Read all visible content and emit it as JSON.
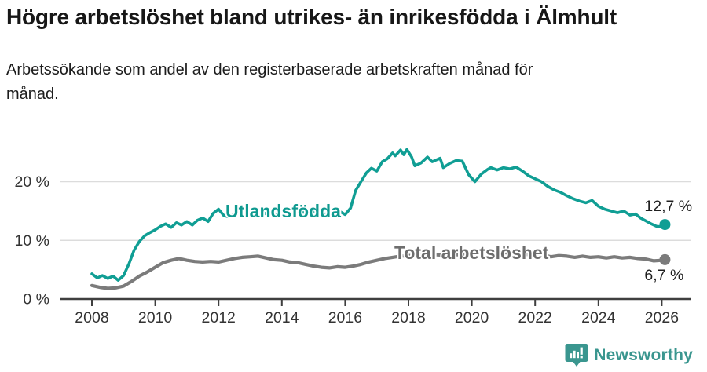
{
  "header": {
    "title": "Högre arbetslöshet bland utrikes- än inrikesfödda i Älmhult",
    "subtitle": "Arbetssökande som andel av den registerbaserade arbetskraften månad för månad."
  },
  "chart_data": {
    "type": "line",
    "title": "Högre arbetslöshet bland utrikes- än inrikesfödda i Älmhult",
    "subtitle": "Arbetssökande som andel av den registerbaserade arbetskraften månad för månad.",
    "unit": "%",
    "grid": "horizontal-only",
    "legend_position": "inline-labels",
    "x_axis": {
      "tick_years": [
        2008,
        2010,
        2012,
        2014,
        2016,
        2018,
        2020,
        2022,
        2024,
        2026
      ],
      "range": [
        2007.9,
        2026.9
      ]
    },
    "y_axis": {
      "ticks": [
        {
          "value": 0,
          "label": "0 %"
        },
        {
          "value": 10,
          "label": "10 %"
        },
        {
          "value": 20,
          "label": "20 %"
        }
      ],
      "range": [
        0,
        26.5
      ]
    },
    "colors": {
      "accent_teal": "#109e94",
      "gray_line": "#7b7b7b",
      "gray_label": "#6e6e6e",
      "grid": "#dcdcdc",
      "axis": "#3f3f3f",
      "axis_text": "#333333",
      "value_text": "#1f1f1f"
    },
    "series": [
      {
        "name": "Utlandsfödda",
        "color": "#109e94",
        "label_color": "#0f9a90",
        "end_label": "12,7 %",
        "end_value": 12.7,
        "points": [
          [
            2008.0,
            4.3
          ],
          [
            2008.17,
            3.6
          ],
          [
            2008.33,
            4.0
          ],
          [
            2008.5,
            3.5
          ],
          [
            2008.67,
            3.9
          ],
          [
            2008.83,
            3.2
          ],
          [
            2009.0,
            4.0
          ],
          [
            2009.17,
            6.0
          ],
          [
            2009.33,
            8.3
          ],
          [
            2009.5,
            9.8
          ],
          [
            2009.67,
            10.8
          ],
          [
            2009.83,
            11.3
          ],
          [
            2010.0,
            11.8
          ],
          [
            2010.17,
            12.4
          ],
          [
            2010.33,
            12.8
          ],
          [
            2010.5,
            12.2
          ],
          [
            2010.67,
            13.0
          ],
          [
            2010.83,
            12.6
          ],
          [
            2011.0,
            13.2
          ],
          [
            2011.17,
            12.6
          ],
          [
            2011.33,
            13.4
          ],
          [
            2011.5,
            13.8
          ],
          [
            2011.67,
            13.2
          ],
          [
            2011.83,
            14.6
          ],
          [
            2012.0,
            15.3
          ],
          [
            2012.17,
            14.2
          ],
          [
            2012.33,
            14.0
          ],
          [
            2012.5,
            14.5
          ],
          [
            2012.67,
            15.0
          ],
          [
            2012.83,
            14.4
          ],
          [
            2013.0,
            15.2
          ],
          [
            2013.17,
            15.6
          ],
          [
            2013.33,
            15.0
          ],
          [
            2013.5,
            14.5
          ],
          [
            2013.67,
            14.8
          ],
          [
            2013.83,
            14.4
          ],
          [
            2014.0,
            14.6
          ],
          [
            2014.25,
            14.2
          ],
          [
            2014.5,
            15.0
          ],
          [
            2014.75,
            14.7
          ],
          [
            2015.0,
            15.0
          ],
          [
            2015.25,
            14.4
          ],
          [
            2015.5,
            14.6
          ],
          [
            2015.75,
            15.2
          ],
          [
            2016.0,
            14.4
          ],
          [
            2016.17,
            15.5
          ],
          [
            2016.33,
            18.5
          ],
          [
            2016.5,
            20.0
          ],
          [
            2016.67,
            21.5
          ],
          [
            2016.83,
            22.3
          ],
          [
            2017.0,
            21.8
          ],
          [
            2017.17,
            23.4
          ],
          [
            2017.33,
            23.9
          ],
          [
            2017.5,
            24.9
          ],
          [
            2017.58,
            24.4
          ],
          [
            2017.75,
            25.4
          ],
          [
            2017.85,
            24.6
          ],
          [
            2017.95,
            25.5
          ],
          [
            2018.1,
            24.2
          ],
          [
            2018.2,
            22.7
          ],
          [
            2018.4,
            23.2
          ],
          [
            2018.6,
            24.2
          ],
          [
            2018.75,
            23.4
          ],
          [
            2019.0,
            24.0
          ],
          [
            2019.1,
            22.4
          ],
          [
            2019.3,
            23.1
          ],
          [
            2019.5,
            23.6
          ],
          [
            2019.7,
            23.5
          ],
          [
            2019.9,
            21.2
          ],
          [
            2020.1,
            20.0
          ],
          [
            2020.3,
            21.3
          ],
          [
            2020.5,
            22.1
          ],
          [
            2020.6,
            22.4
          ],
          [
            2020.8,
            22.0
          ],
          [
            2021.0,
            22.4
          ],
          [
            2021.2,
            22.2
          ],
          [
            2021.4,
            22.5
          ],
          [
            2021.6,
            21.8
          ],
          [
            2021.8,
            21.0
          ],
          [
            2022.0,
            20.5
          ],
          [
            2022.2,
            20.0
          ],
          [
            2022.4,
            19.2
          ],
          [
            2022.6,
            18.6
          ],
          [
            2022.8,
            18.2
          ],
          [
            2023.0,
            17.6
          ],
          [
            2023.2,
            17.1
          ],
          [
            2023.4,
            16.7
          ],
          [
            2023.6,
            16.4
          ],
          [
            2023.8,
            16.8
          ],
          [
            2024.0,
            15.8
          ],
          [
            2024.2,
            15.3
          ],
          [
            2024.4,
            15.0
          ],
          [
            2024.6,
            14.7
          ],
          [
            2024.8,
            15.0
          ],
          [
            2025.0,
            14.3
          ],
          [
            2025.17,
            14.5
          ],
          [
            2025.33,
            13.8
          ],
          [
            2025.5,
            13.3
          ],
          [
            2025.67,
            12.8
          ],
          [
            2025.83,
            12.4
          ],
          [
            2026.0,
            12.3
          ],
          [
            2026.1,
            12.7
          ]
        ]
      },
      {
        "name": "Total arbetslöshet",
        "color": "#7b7b7b",
        "label_color": "#6e6e6e",
        "end_label": "6,7 %",
        "end_value": 6.7,
        "points": [
          [
            2008.0,
            2.3
          ],
          [
            2008.25,
            2.0
          ],
          [
            2008.5,
            1.8
          ],
          [
            2008.75,
            1.9
          ],
          [
            2009.0,
            2.2
          ],
          [
            2009.25,
            3.0
          ],
          [
            2009.5,
            3.9
          ],
          [
            2009.75,
            4.6
          ],
          [
            2010.0,
            5.4
          ],
          [
            2010.25,
            6.2
          ],
          [
            2010.5,
            6.6
          ],
          [
            2010.75,
            6.9
          ],
          [
            2011.0,
            6.6
          ],
          [
            2011.25,
            6.4
          ],
          [
            2011.5,
            6.3
          ],
          [
            2011.75,
            6.4
          ],
          [
            2012.0,
            6.3
          ],
          [
            2012.25,
            6.6
          ],
          [
            2012.5,
            6.9
          ],
          [
            2012.75,
            7.1
          ],
          [
            2013.0,
            7.2
          ],
          [
            2013.25,
            7.3
          ],
          [
            2013.5,
            7.0
          ],
          [
            2013.75,
            6.7
          ],
          [
            2014.0,
            6.6
          ],
          [
            2014.25,
            6.3
          ],
          [
            2014.5,
            6.2
          ],
          [
            2014.75,
            5.9
          ],
          [
            2015.0,
            5.6
          ],
          [
            2015.25,
            5.4
          ],
          [
            2015.5,
            5.3
          ],
          [
            2015.75,
            5.5
          ],
          [
            2016.0,
            5.4
          ],
          [
            2016.25,
            5.6
          ],
          [
            2016.5,
            5.9
          ],
          [
            2016.75,
            6.3
          ],
          [
            2017.0,
            6.6
          ],
          [
            2017.25,
            6.9
          ],
          [
            2017.5,
            7.1
          ],
          [
            2017.75,
            7.3
          ],
          [
            2018.0,
            7.4
          ],
          [
            2018.33,
            7.5
          ],
          [
            2018.67,
            7.6
          ],
          [
            2019.0,
            7.5
          ],
          [
            2019.33,
            7.6
          ],
          [
            2019.67,
            7.5
          ],
          [
            2020.0,
            7.7
          ],
          [
            2020.33,
            8.1
          ],
          [
            2020.67,
            8.0
          ],
          [
            2021.0,
            7.9
          ],
          [
            2021.33,
            7.8
          ],
          [
            2021.67,
            7.6
          ],
          [
            2022.0,
            7.5
          ],
          [
            2022.33,
            7.4
          ],
          [
            2022.5,
            7.2
          ],
          [
            2022.75,
            7.4
          ],
          [
            2023.0,
            7.3
          ],
          [
            2023.25,
            7.1
          ],
          [
            2023.5,
            7.3
          ],
          [
            2023.75,
            7.1
          ],
          [
            2024.0,
            7.2
          ],
          [
            2024.25,
            7.0
          ],
          [
            2024.5,
            7.2
          ],
          [
            2024.75,
            7.0
          ],
          [
            2025.0,
            7.1
          ],
          [
            2025.25,
            6.9
          ],
          [
            2025.5,
            6.8
          ],
          [
            2025.75,
            6.5
          ],
          [
            2026.0,
            6.6
          ],
          [
            2026.1,
            6.7
          ]
        ]
      }
    ]
  },
  "footer": {
    "brand": "Newsworthy",
    "brand_color": "#3a968f",
    "logo_icon": "speech-bubble-bar-chart-icon"
  }
}
